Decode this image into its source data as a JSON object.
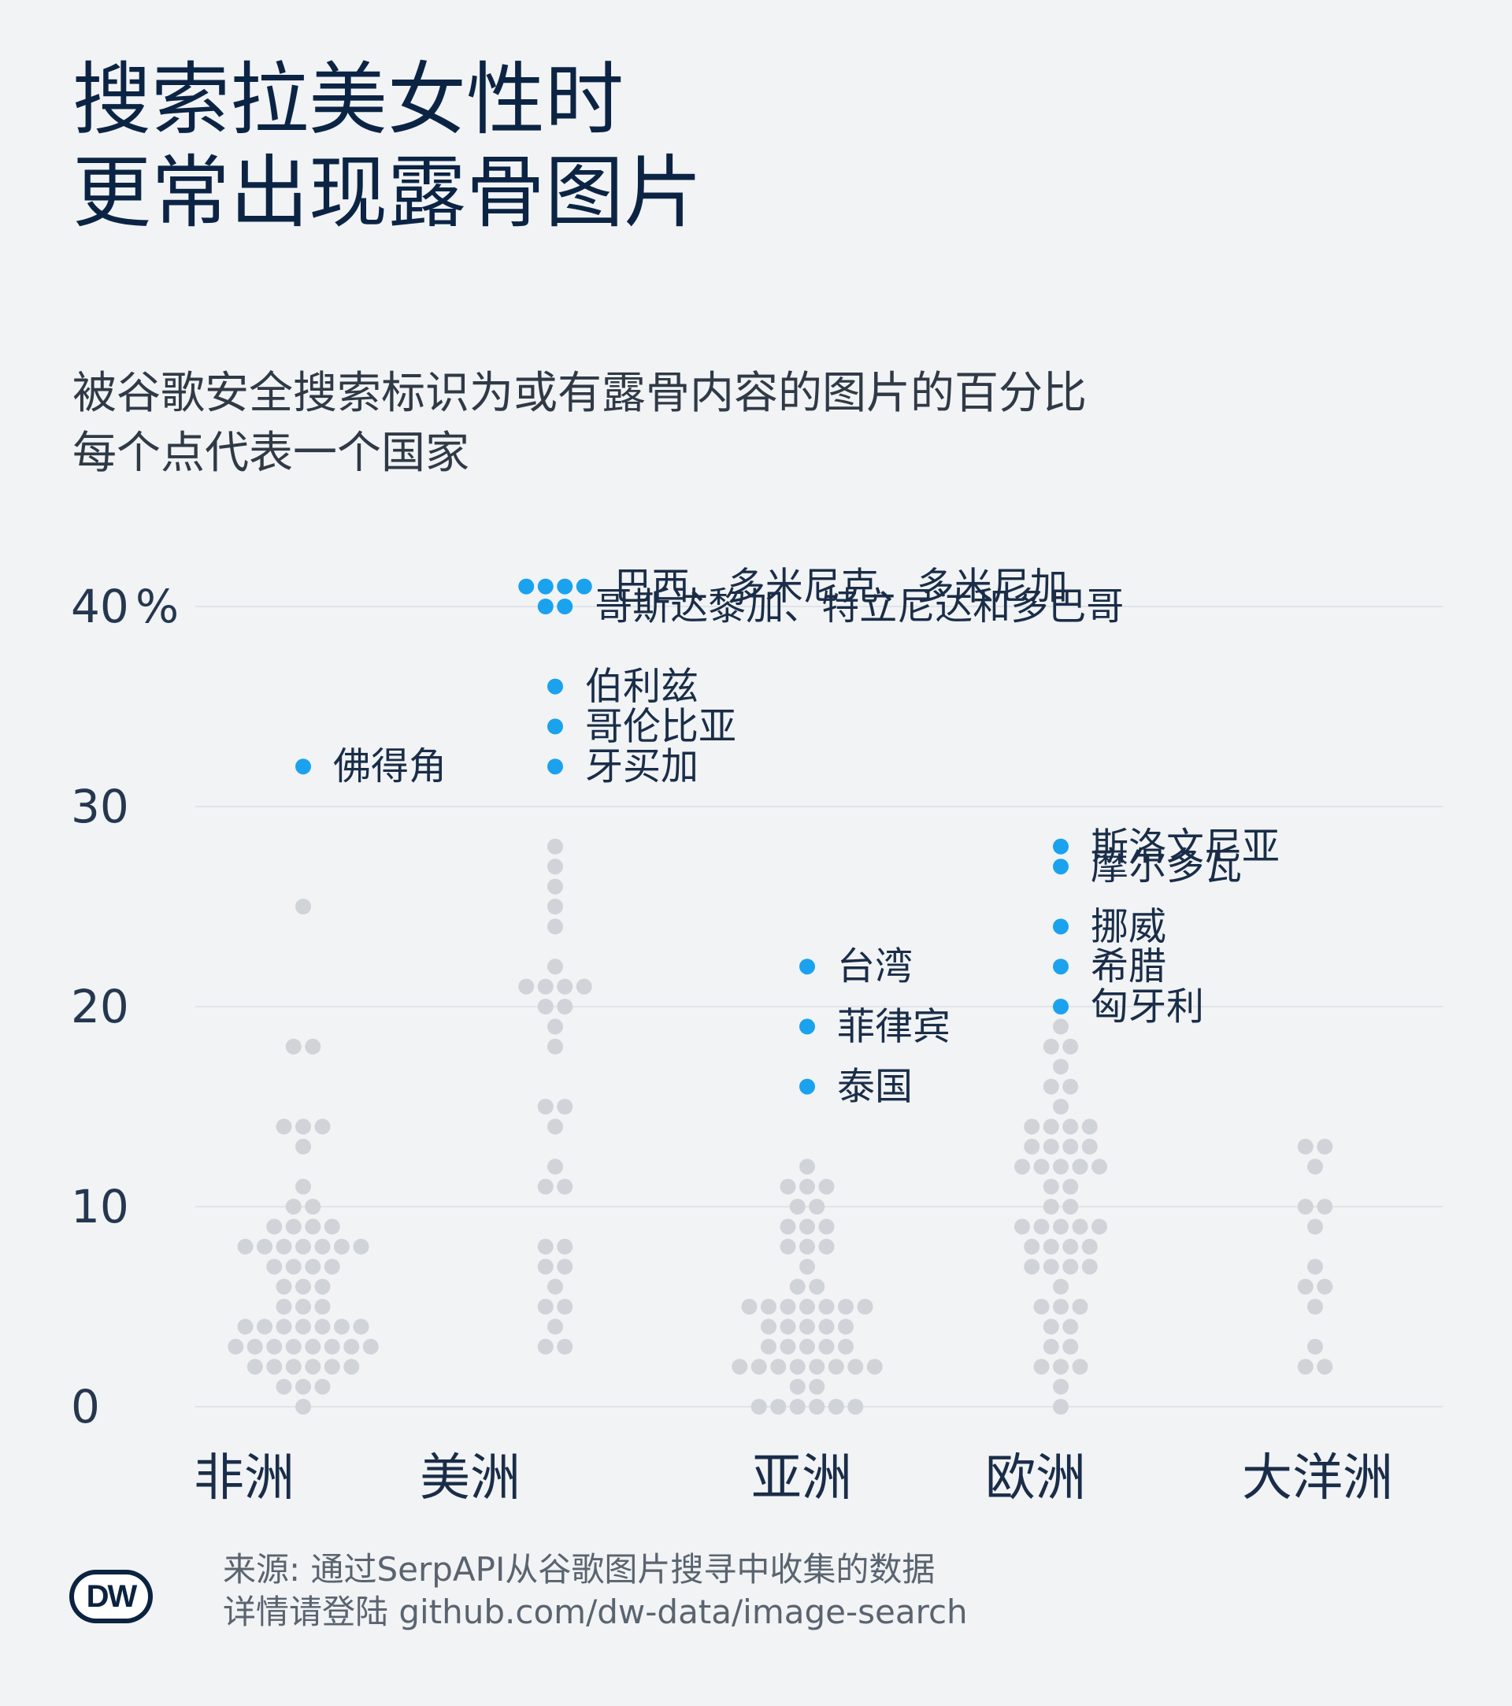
{
  "title_lines": [
    "搜索拉美女性时",
    "更常出现露骨图片"
  ],
  "subtitle_lines": [
    "被谷歌安全搜索标识为或有露骨内容的图片的百分比",
    "每个点代表一个国家"
  ],
  "source_lines": [
    "来源: 通过SerpAPI从谷歌图片搜寻中收集的数据",
    "详情请登陆 github.com/dw-data/image-search"
  ],
  "logo_text": "DW",
  "colors": {
    "highlight": "#1aa2ee",
    "dot": "#d0d4d9",
    "grid": "#dcdfe3",
    "text": "#0b2341"
  },
  "chart_data": {
    "type": "scatter",
    "y_unit": "%",
    "ylim": [
      0,
      42
    ],
    "y_ticks": [
      {
        "value": 0,
        "label": "0"
      },
      {
        "value": 10,
        "label": "10"
      },
      {
        "value": 20,
        "label": "20"
      },
      {
        "value": 30,
        "label": "30"
      },
      {
        "value": 40,
        "label": "40"
      }
    ],
    "categories": [
      "非洲",
      "美洲",
      "亚洲",
      "欧洲",
      "大洋洲"
    ],
    "series": [
      {
        "category": "非洲",
        "values": [
          0,
          1,
          1,
          1,
          2,
          2,
          2,
          2,
          2,
          2,
          3,
          3,
          3,
          3,
          3,
          3,
          3,
          3,
          4,
          4,
          4,
          4,
          4,
          4,
          4,
          5,
          5,
          5,
          6,
          6,
          6,
          7,
          7,
          7,
          7,
          8,
          8,
          8,
          8,
          8,
          8,
          8,
          9,
          9,
          9,
          9,
          10,
          10,
          11,
          13,
          14,
          14,
          14,
          18,
          18,
          25,
          32
        ],
        "highlights": [
          {
            "value": 32,
            "label": "佛得角"
          }
        ]
      },
      {
        "category": "美洲",
        "values": [
          3,
          3,
          4,
          5,
          5,
          6,
          7,
          7,
          8,
          8,
          11,
          11,
          12,
          14,
          15,
          15,
          18,
          19,
          20,
          20,
          21,
          21,
          21,
          21,
          22,
          24,
          25,
          26,
          27,
          28,
          32,
          34,
          36,
          40,
          40,
          41,
          41,
          41,
          41
        ],
        "highlights": [
          {
            "value": 41,
            "label": "巴西、多米尼克、多米尼加"
          },
          {
            "value": 40,
            "label": "哥斯达黎加、特立尼达和多巴哥"
          },
          {
            "value": 36,
            "label": "伯利兹"
          },
          {
            "value": 34,
            "label": "哥伦比亚"
          },
          {
            "value": 32,
            "label": "牙买加"
          }
        ]
      },
      {
        "category": "亚洲",
        "values": [
          0,
          0,
          0,
          0,
          0,
          0,
          1,
          1,
          2,
          2,
          2,
          2,
          2,
          2,
          2,
          2,
          3,
          3,
          3,
          3,
          3,
          4,
          4,
          4,
          4,
          4,
          5,
          5,
          5,
          5,
          5,
          5,
          5,
          6,
          6,
          7,
          8,
          8,
          8,
          9,
          9,
          9,
          10,
          10,
          11,
          11,
          11,
          12,
          16,
          19,
          22
        ],
        "highlights": [
          {
            "value": 22,
            "label": "台湾"
          },
          {
            "value": 19,
            "label": "菲律宾"
          },
          {
            "value": 16,
            "label": "泰国"
          }
        ]
      },
      {
        "category": "欧洲",
        "values": [
          0,
          1,
          2,
          2,
          2,
          3,
          3,
          4,
          4,
          5,
          5,
          5,
          6,
          7,
          7,
          7,
          7,
          8,
          8,
          8,
          8,
          9,
          9,
          9,
          9,
          9,
          10,
          10,
          11,
          11,
          12,
          12,
          12,
          12,
          12,
          13,
          13,
          13,
          13,
          14,
          14,
          14,
          14,
          15,
          16,
          16,
          17,
          18,
          18,
          19,
          20,
          22,
          24,
          27,
          28
        ],
        "highlights": [
          {
            "value": 28,
            "label": "斯洛文尼亚"
          },
          {
            "value": 27,
            "label": "摩尔多瓦"
          },
          {
            "value": 24,
            "label": "挪威"
          },
          {
            "value": 22,
            "label": "希腊"
          },
          {
            "value": 20,
            "label": "匈牙利"
          }
        ]
      },
      {
        "category": "大洋洲",
        "values": [
          2,
          2,
          3,
          5,
          6,
          6,
          7,
          9,
          10,
          10,
          12,
          13,
          13
        ],
        "highlights": []
      }
    ]
  }
}
